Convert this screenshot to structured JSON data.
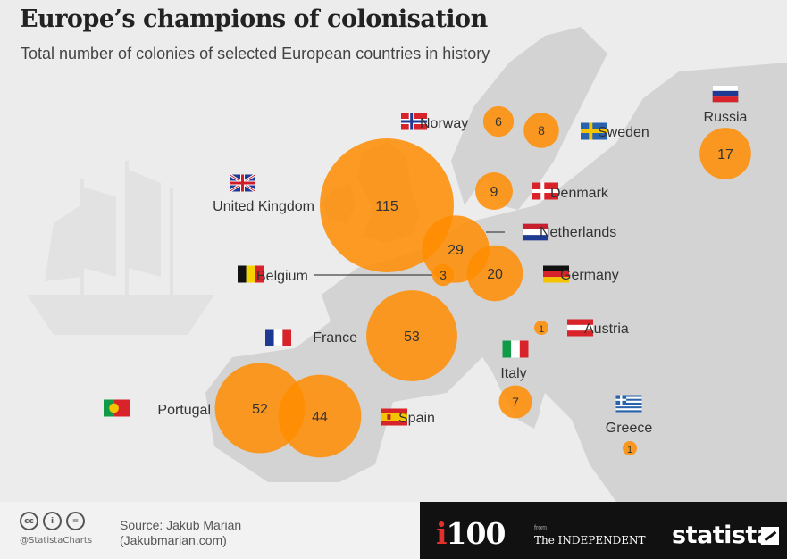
{
  "header": {
    "title": "Europe’s champions of colonisation",
    "subtitle": "Total number of colonies of selected European countries in history"
  },
  "chart_data": {
    "type": "bubble-map",
    "title": "Europe’s champions of colonisation",
    "subtitle": "Total number of colonies of selected European countries in history",
    "unit": "colonies",
    "categories": [
      "United Kingdom",
      "France",
      "Portugal",
      "Spain",
      "Netherlands",
      "Germany",
      "Russia",
      "Denmark",
      "Sweden",
      "Italy",
      "Norway",
      "Belgium",
      "Austria",
      "Greece"
    ],
    "values": [
      115,
      53,
      52,
      44,
      29,
      20,
      17,
      9,
      8,
      7,
      6,
      3,
      1,
      1
    ],
    "bubble_color": "#ff8c00"
  },
  "footer": {
    "handle": "@StatistaCharts",
    "source_line1": "Source: Jakub Marian",
    "source_line2": "(Jakubmarian.com)",
    "cc_icons": [
      "cc",
      "i",
      "="
    ],
    "i100_i": "i",
    "i100_rest": "100",
    "from_label": "from",
    "independent": "The INDEPENDENT",
    "statista": "statista"
  },
  "colors": {
    "bubble": "#ff8c00",
    "land": "#d2d2d2",
    "sea": "#ececec",
    "label": "#333333"
  }
}
